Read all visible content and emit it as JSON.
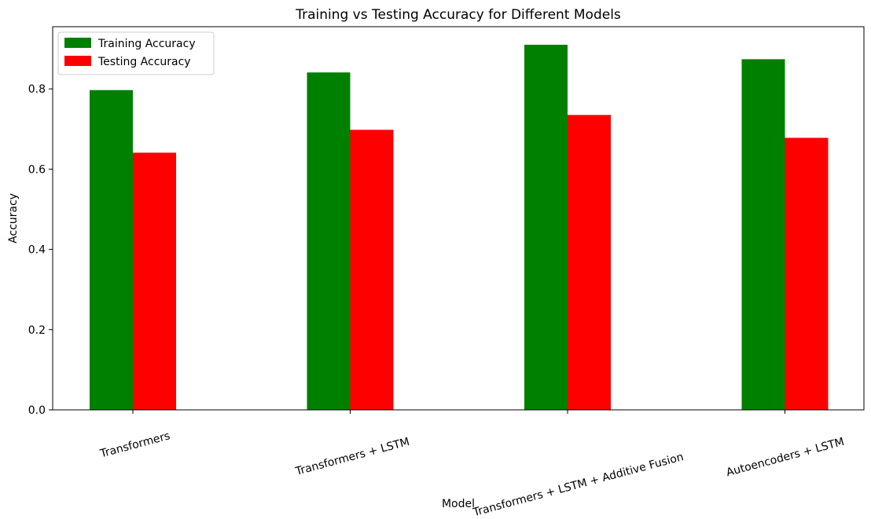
{
  "chart_data": {
    "type": "bar",
    "title": "Training vs Testing Accuracy for Different Models",
    "xlabel": "Model",
    "ylabel": "Accuracy",
    "categories": [
      "Transformers",
      "Transformers + LSTM",
      "Transformers + LSTM + Additive Fusion",
      "Autoencoders + LSTM"
    ],
    "series": [
      {
        "name": "Training Accuracy",
        "color": "#008000",
        "values": [
          0.797,
          0.841,
          0.91,
          0.874
        ]
      },
      {
        "name": "Testing Accuracy",
        "color": "#ff0000",
        "values": [
          0.641,
          0.698,
          0.735,
          0.678
        ]
      }
    ],
    "ylim": [
      0,
      0.955
    ],
    "yticks": [
      "0.0",
      "0.2",
      "0.4",
      "0.6",
      "0.8"
    ],
    "xtick_rotation_deg": 15,
    "legend_position": "top-left",
    "grid": false
  }
}
